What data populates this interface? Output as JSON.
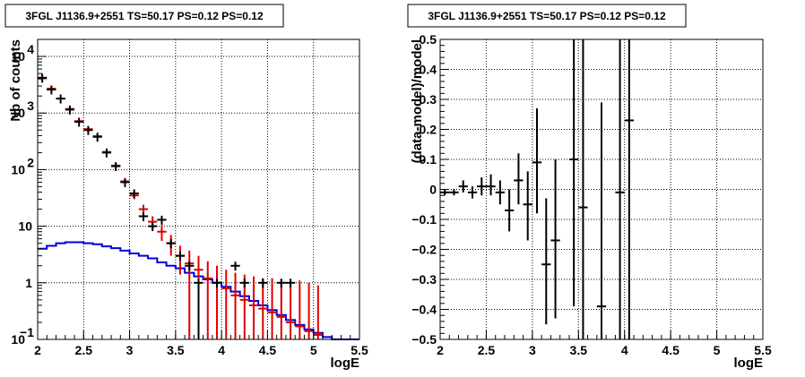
{
  "chart_data": [
    {
      "type": "line",
      "title": "3FGL J1136.9+2551 TS=50.17 PS=0.12 PS=0.12",
      "xlabel": "logE",
      "ylabel": "Nb of counts",
      "xlim": [
        2,
        5.5
      ],
      "ylim": [
        0.1,
        20000
      ],
      "yscale": "log",
      "grid": true,
      "x_ticks": [
        "2",
        "2.5",
        "3",
        "3.5",
        "4",
        "4.5",
        "5",
        "5.5"
      ],
      "y_ticks": [
        {
          "value": 0.1,
          "label": "10",
          "sup": "−1"
        },
        {
          "value": 1,
          "label": "1",
          "sup": ""
        },
        {
          "value": 10,
          "label": "10",
          "sup": ""
        },
        {
          "value": 100,
          "label": "10",
          "sup": "2"
        },
        {
          "value": 1000,
          "label": "10",
          "sup": "3"
        },
        {
          "value": 10000,
          "label": "10",
          "sup": "4"
        }
      ],
      "series": [
        {
          "color": "#000000",
          "points": [
            {
              "x": 2.05,
              "y": 4200
            },
            {
              "x": 2.15,
              "y": 2600
            },
            {
              "x": 2.25,
              "y": 1800
            },
            {
              "x": 2.35,
              "y": 1150
            },
            {
              "x": 2.45,
              "y": 700
            },
            {
              "x": 2.55,
              "y": 500
            },
            {
              "x": 2.65,
              "y": 380
            },
            {
              "x": 2.75,
              "y": 200
            },
            {
              "x": 2.85,
              "y": 115
            },
            {
              "x": 2.95,
              "y": 60
            },
            {
              "x": 3.05,
              "y": 38
            },
            {
              "x": 3.15,
              "y": 15
            },
            {
              "x": 3.25,
              "y": 10
            },
            {
              "x": 3.35,
              "y": 13
            },
            {
              "x": 3.45,
              "y": 5
            },
            {
              "x": 3.55,
              "y": 3
            },
            {
              "x": 3.65,
              "y": 2
            },
            {
              "x": 3.75,
              "y": 1,
              "lo": 0.1
            },
            {
              "x": 3.95,
              "y": 1
            },
            {
              "x": 4.15,
              "y": 2
            },
            {
              "x": 4.25,
              "y": 1
            },
            {
              "x": 4.45,
              "y": 1
            },
            {
              "x": 4.65,
              "y": 1
            },
            {
              "x": 4.75,
              "y": 1
            }
          ]
        },
        {
          "color": "#dd0000",
          "points": [
            {
              "x": 2.05,
              "y": 4100,
              "lo": 4000,
              "hi": 4200
            },
            {
              "x": 2.15,
              "y": 2700,
              "lo": 2650,
              "hi": 2750
            },
            {
              "x": 2.25,
              "y": 1800,
              "lo": 1760,
              "hi": 1840
            },
            {
              "x": 2.35,
              "y": 1180,
              "lo": 1150,
              "hi": 1210
            },
            {
              "x": 2.45,
              "y": 720,
              "lo": 700,
              "hi": 740
            },
            {
              "x": 2.55,
              "y": 520,
              "lo": 505,
              "hi": 535
            },
            {
              "x": 2.65,
              "y": 390,
              "lo": 378,
              "hi": 402
            },
            {
              "x": 2.75,
              "y": 205,
              "lo": 195,
              "hi": 215
            },
            {
              "x": 2.85,
              "y": 118,
              "lo": 110,
              "hi": 126
            },
            {
              "x": 2.95,
              "y": 62,
              "lo": 56,
              "hi": 68
            },
            {
              "x": 3.05,
              "y": 35,
              "lo": 30,
              "hi": 40
            },
            {
              "x": 3.15,
              "y": 20,
              "lo": 16,
              "hi": 24
            },
            {
              "x": 3.25,
              "y": 12,
              "lo": 9,
              "hi": 15
            },
            {
              "x": 3.35,
              "y": 8,
              "lo": 5.5,
              "hi": 10.5
            },
            {
              "x": 3.45,
              "y": 5,
              "lo": 3,
              "hi": 7
            },
            {
              "x": 3.55,
              "y": 3,
              "lo": 1.4,
              "hi": 4.5
            },
            {
              "x": 3.65,
              "y": 2.2,
              "lo": 0.1,
              "hi": 3.7
            },
            {
              "x": 3.75,
              "y": 1.7,
              "lo": 0.1,
              "hi": 3.0
            },
            {
              "x": 3.85,
              "y": 1.2,
              "lo": 0.1,
              "hi": 2.4
            },
            {
              "x": 3.95,
              "y": 1.0,
              "lo": 0.1,
              "hi": 2.0
            },
            {
              "x": 4.05,
              "y": 0.8,
              "lo": 0.1,
              "hi": 1.7
            },
            {
              "x": 4.15,
              "y": 0.6,
              "lo": 0.1,
              "hi": 1.5
            },
            {
              "x": 4.25,
              "y": 0.5,
              "lo": 0.1,
              "hi": 1.4
            },
            {
              "x": 4.35,
              "y": 0.4,
              "lo": 0.1,
              "hi": 1.3
            },
            {
              "x": 4.45,
              "y": 0.35,
              "lo": 0.1,
              "hi": 1.2
            },
            {
              "x": 4.55,
              "y": 0.3,
              "lo": 0.1,
              "hi": 1.2
            },
            {
              "x": 4.65,
              "y": 0.25,
              "lo": 0.1,
              "hi": 1.15
            },
            {
              "x": 4.75,
              "y": 0.2,
              "lo": 0.1,
              "hi": 1.1
            },
            {
              "x": 4.85,
              "y": 0.17,
              "lo": 0.1,
              "hi": 1.1
            },
            {
              "x": 4.95,
              "y": 0.14,
              "lo": 0.1,
              "hi": 1.0
            },
            {
              "x": 5.05,
              "y": 0.12,
              "lo": 0.1,
              "hi": 0.9
            }
          ]
        },
        {
          "color": "#0000dd",
          "step": true,
          "edges": [
            2.0,
            2.1,
            2.2,
            2.3,
            2.4,
            2.5,
            2.6,
            2.7,
            2.8,
            2.9,
            3.0,
            3.1,
            3.2,
            3.3,
            3.4,
            3.5,
            3.6,
            3.7,
            3.8,
            3.9,
            4.0,
            4.1,
            4.2,
            4.3,
            4.4,
            4.5,
            4.6,
            4.7,
            4.8,
            4.9,
            5.0,
            5.1,
            5.2,
            5.3,
            5.4,
            5.5
          ],
          "values": [
            4.0,
            4.5,
            5.0,
            5.2,
            5.2,
            5.0,
            4.8,
            4.4,
            4.1,
            3.7,
            3.3,
            3.0,
            2.7,
            2.3,
            2.0,
            1.8,
            1.5,
            1.3,
            1.15,
            1.0,
            0.85,
            0.7,
            0.58,
            0.48,
            0.4,
            0.33,
            0.27,
            0.22,
            0.18,
            0.15,
            0.13,
            0.11,
            0.1,
            0.1,
            0.1
          ]
        }
      ]
    },
    {
      "type": "scatter",
      "title": "3FGL J1136.9+2551 TS=50.17 PS=0.12 PS=0.12",
      "xlabel": "logE",
      "ylabel": "(data-model)/model",
      "xlim": [
        2,
        5.5
      ],
      "ylim": [
        -0.5,
        0.5
      ],
      "grid": true,
      "x_ticks": [
        "2",
        "2.5",
        "3",
        "3.5",
        "4",
        "4.5",
        "5",
        "5.5"
      ],
      "y_ticks": [
        "−0.5",
        "−0.4",
        "−0.3",
        "−0.2",
        "−0.1",
        "0",
        "0.1",
        "0.2",
        "0.3",
        "0.4",
        "0.5"
      ],
      "series": [
        {
          "color": "#000000",
          "points": [
            {
              "x": 2.05,
              "y": -0.01,
              "lo": -0.02,
              "hi": 0.0
            },
            {
              "x": 2.15,
              "y": -0.01,
              "lo": -0.02,
              "hi": 0.0
            },
            {
              "x": 2.25,
              "y": 0.01,
              "lo": -0.01,
              "hi": 0.03
            },
            {
              "x": 2.35,
              "y": -0.01,
              "lo": -0.03,
              "hi": 0.01
            },
            {
              "x": 2.45,
              "y": 0.01,
              "lo": -0.02,
              "hi": 0.04
            },
            {
              "x": 2.55,
              "y": 0.01,
              "lo": -0.02,
              "hi": 0.05
            },
            {
              "x": 2.65,
              "y": -0.01,
              "lo": -0.05,
              "hi": 0.03
            },
            {
              "x": 2.75,
              "y": -0.07,
              "lo": -0.14,
              "hi": 0.0
            },
            {
              "x": 2.85,
              "y": 0.03,
              "lo": -0.05,
              "hi": 0.12
            },
            {
              "x": 2.95,
              "y": -0.05,
              "lo": -0.17,
              "hi": 0.06
            },
            {
              "x": 3.05,
              "y": 0.09,
              "lo": -0.08,
              "hi": 0.27
            },
            {
              "x": 3.15,
              "y": -0.25,
              "lo": -0.45,
              "hi": -0.03
            },
            {
              "x": 3.25,
              "y": -0.17,
              "lo": -0.43,
              "hi": 0.1
            },
            {
              "x": 3.45,
              "y": 0.1,
              "lo": -0.39,
              "hi": 0.5
            },
            {
              "x": 3.55,
              "y": -0.06,
              "lo": -0.5,
              "hi": 0.5
            },
            {
              "x": 3.75,
              "y": -0.39,
              "lo": -0.5,
              "hi": 0.29
            },
            {
              "x": 3.95,
              "y": -0.01,
              "lo": -0.5,
              "hi": 0.5
            },
            {
              "x": 4.05,
              "y": 0.23,
              "lo": -0.5,
              "hi": 0.5
            }
          ]
        }
      ]
    }
  ]
}
